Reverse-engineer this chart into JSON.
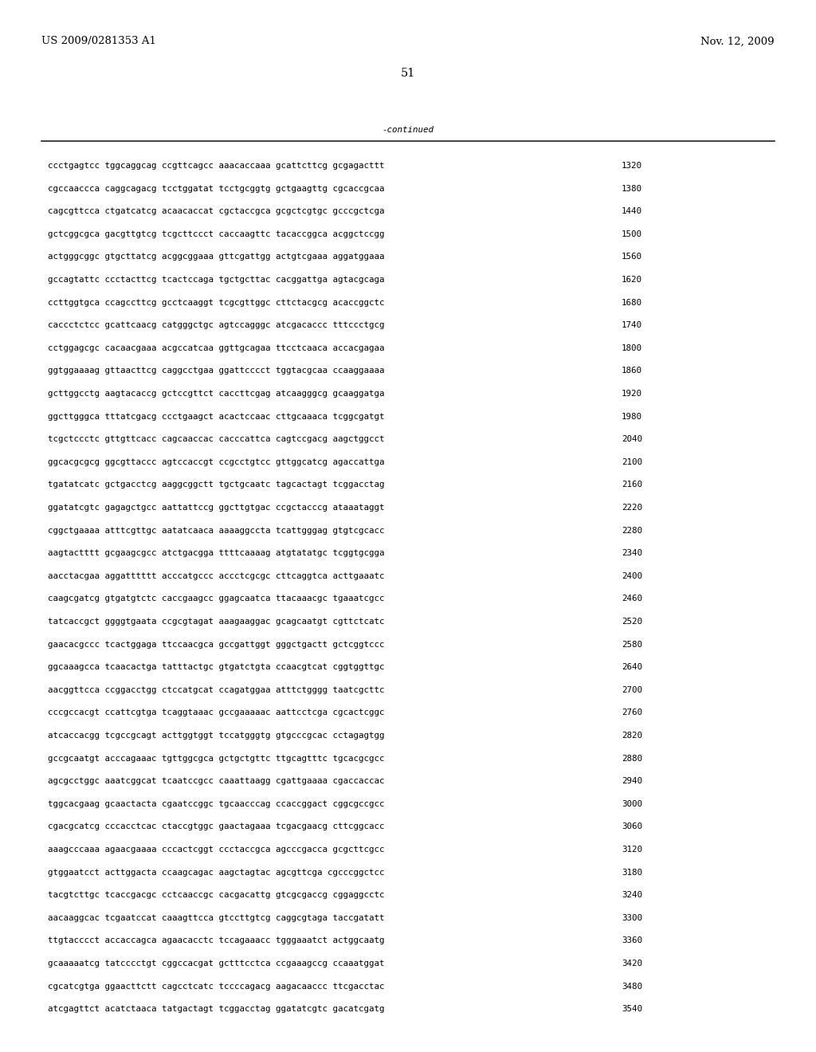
{
  "header_left": "US 2009/0281353 A1",
  "header_right": "Nov. 12, 2009",
  "page_number": "51",
  "continued_label": "-continued",
  "background_color": "#ffffff",
  "text_color": "#000000",
  "font_size_header": 9.5,
  "font_size_body": 7.8,
  "font_size_page": 10.5,
  "sequence_lines": [
    [
      "ccctgagtcc tggcaggcag ccgttcagcc aaacaccaaa gcattcttcg gcgagacttt",
      "1320"
    ],
    [
      "cgccaaccca caggcagacg tcctggatat tcctgcggtg gctgaagttg cgcaccgcaa",
      "1380"
    ],
    [
      "cagcgttcca ctgatcatcg acaacaccat cgctaccgca gcgctcgtgc gcccgctcga",
      "1440"
    ],
    [
      "gctcggcgca gacgttgtcg tcgcttccct caccaagttc tacaccggca acggctccgg",
      "1500"
    ],
    [
      "actgggcggc gtgcttatcg acggcggaaa gttcgattgg actgtcgaaa aggatggaaa",
      "1560"
    ],
    [
      "gccagtattc ccctacttcg tcactccaga tgctgcttac cacggattga agtacgcaga",
      "1620"
    ],
    [
      "ccttggtgca ccagccttcg gcctcaaggt tcgcgttggc cttctacgcg acaccggctc",
      "1680"
    ],
    [
      "caccctctcc gcattcaacg catgggctgc agtccagggc atcgacaccc tttccctgcg",
      "1740"
    ],
    [
      "cctggagcgc cacaacgaaa acgccatcaa ggttgcagaa ttcctcaaca accacgagaa",
      "1800"
    ],
    [
      "ggtggaaaag gttaacttcg caggcctgaa ggattcccct tggtacgcaa ccaaggaaaa",
      "1860"
    ],
    [
      "gcttggcctg aagtacaccg gctccgttct caccttcgag atcaagggcg gcaaggatga",
      "1920"
    ],
    [
      "ggcttgggca tttatcgacg ccctgaagct acactccaac cttgcaaaca tcggcgatgt",
      "1980"
    ],
    [
      "tcgctccctc gttgttcacc cagcaaccac cacccattca cagtccgacg aagctggcct",
      "2040"
    ],
    [
      "ggcacgcgcg ggcgttaccc agtccaccgt ccgcctgtcc gttggcatcg agaccattga",
      "2100"
    ],
    [
      "tgatatcatc gctgacctcg aaggcggctt tgctgcaatc tagcactagt tcggacctag",
      "2160"
    ],
    [
      "ggatatcgtc gagagctgcc aattattccg ggcttgtgac ccgctacccg ataaataggt",
      "2220"
    ],
    [
      "cggctgaaaa atttcgttgc aatatcaaca aaaaggccta tcattgggag gtgtcgcacc",
      "2280"
    ],
    [
      "aagtactttt gcgaagcgcc atctgacgga ttttcaaaag atgtatatgc tcggtgcgga",
      "2340"
    ],
    [
      "aacctacgaa aggatttttt acccatgccc accctcgcgc cttcaggtca acttgaaatc",
      "2400"
    ],
    [
      "caagcgatcg gtgatgtctc caccgaagcc ggagcaatca ttacaaacgc tgaaatcgcc",
      "2460"
    ],
    [
      "tatcaccgct ggggtgaata ccgcgtagat aaagaaggac gcagcaatgt cgttctcatc",
      "2520"
    ],
    [
      "gaacacgccc tcactggaga ttccaacgca gccgattggt gggctgactt gctcggtccc",
      "2580"
    ],
    [
      "ggcaaagcca tcaacactga tatttactgc gtgatctgta ccaacgtcat cggtggttgc",
      "2640"
    ],
    [
      "aacggttcca ccggacctgg ctccatgcat ccagatggaa atttctgggg taatcgcttc",
      "2700"
    ],
    [
      "cccgccacgt ccattcgtga tcaggtaaac gccgaaaaac aattcctcga cgcactcggc",
      "2760"
    ],
    [
      "atcaccacgg tcgccgcagt acttggtggt tccatgggtg gtgcccgcac cctagagtgg",
      "2820"
    ],
    [
      "gccgcaatgt acccagaaac tgttggcgca gctgctgttc ttgcagtttc tgcacgcgcc",
      "2880"
    ],
    [
      "agcgcctggc aaatcggcat tcaatccgcc caaattaagg cgattgaaaa cgaccaccac",
      "2940"
    ],
    [
      "tggcacgaag gcaactacta cgaatccggc tgcaacccag ccaccggact cggcgccgcc",
      "3000"
    ],
    [
      "cgacgcatcg cccacctcac ctaccgtggc gaactagaaa tcgacgaacg cttcggcacc",
      "3060"
    ],
    [
      "aaagcccaaa agaacgaaaa cccactcggt ccctaccgca agcccgacca gcgcttcgcc",
      "3120"
    ],
    [
      "gtggaatcct acttggacta ccaagcagac aagctagtac agcgttcga cgcccggctcc",
      "3180"
    ],
    [
      "tacgtcttgc tcaccgacgc cctcaaccgc cacgacattg gtcgcgaccg cggaggcctc",
      "3240"
    ],
    [
      "aacaaggcac tcgaatccat caaagttcca gtccttgtcg caggcgtaga taccgatatt",
      "3300"
    ],
    [
      "ttgtacccct accaccagca agaacacctc tccagaaacc tgggaaatct actggcaatg",
      "3360"
    ],
    [
      "gcaaaaatcg tatcccctgt cggccacgat gctttcctca ccgaaagccg ccaaatggat",
      "3420"
    ],
    [
      "cgcatcgtga ggaacttctt cagcctcatc tccccagacg aagacaaccc ttcgacctac",
      "3480"
    ],
    [
      "atcgagttct acatctaaca tatgactagt tcggacctag ggatatcgtc gacatcgatg",
      "3540"
    ]
  ]
}
